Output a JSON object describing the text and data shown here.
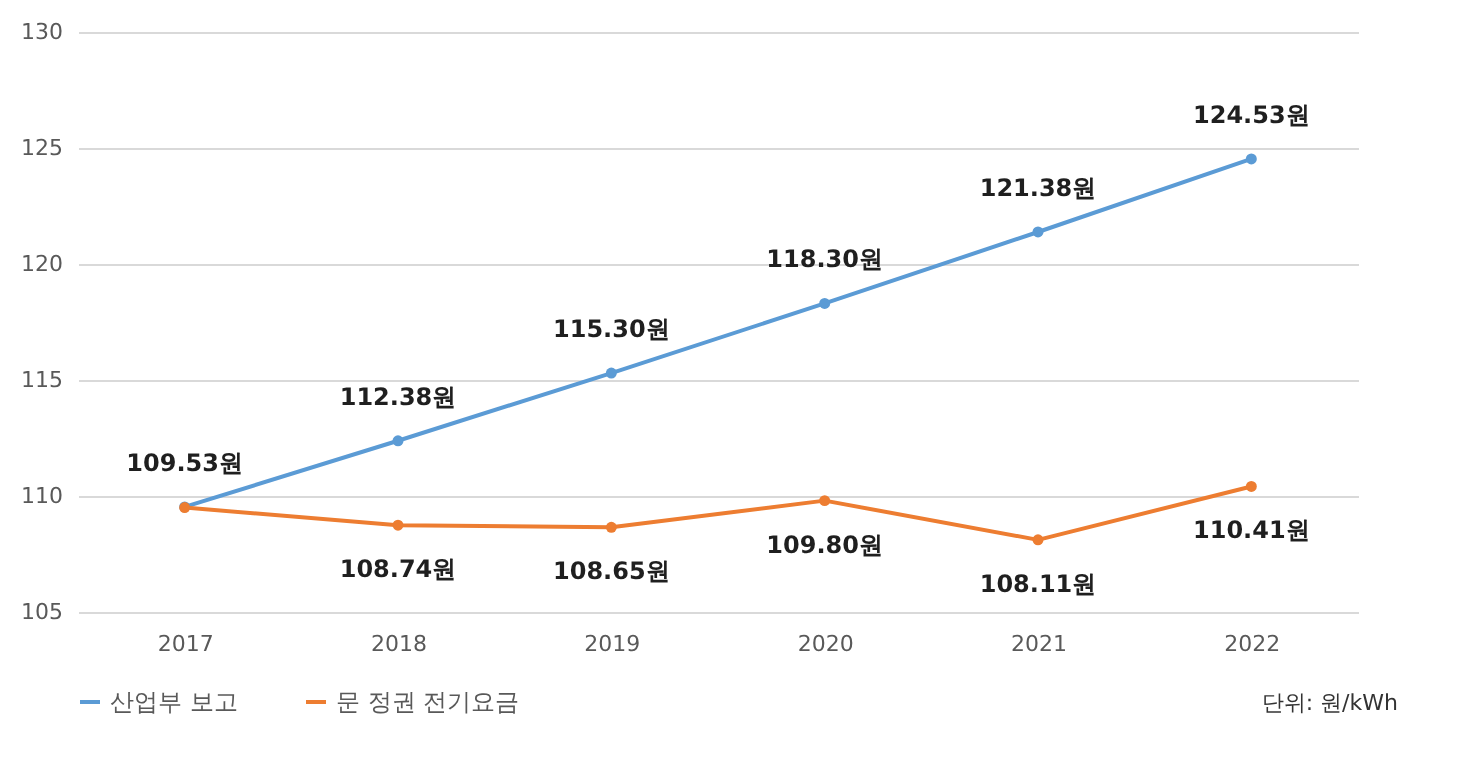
{
  "chart_data": {
    "type": "line",
    "categories": [
      "2017",
      "2018",
      "2019",
      "2020",
      "2021",
      "2022"
    ],
    "series": [
      {
        "name": "산업부 보고",
        "color": "#5b9bd5",
        "values": [
          109.53,
          112.38,
          115.3,
          118.3,
          121.38,
          124.53
        ],
        "value_labels": [
          "109.53원",
          "112.38원",
          "115.30원",
          "118.30원",
          "121.38원",
          "124.53원"
        ]
      },
      {
        "name": "문 정권 전기요금",
        "color": "#ed7d31",
        "values": [
          109.5,
          108.74,
          108.65,
          109.8,
          108.11,
          110.41
        ],
        "value_labels": [
          null,
          "108.74원",
          "108.65원",
          "109.80원",
          "108.11원",
          "110.41원"
        ]
      }
    ],
    "ylim": [
      105,
      130
    ],
    "yticks": [
      105,
      110,
      115,
      120,
      125,
      130
    ],
    "grid": "y",
    "legend": "bottom",
    "marker": "circle",
    "annotations": [
      "단위: 원/kWh"
    ]
  }
}
